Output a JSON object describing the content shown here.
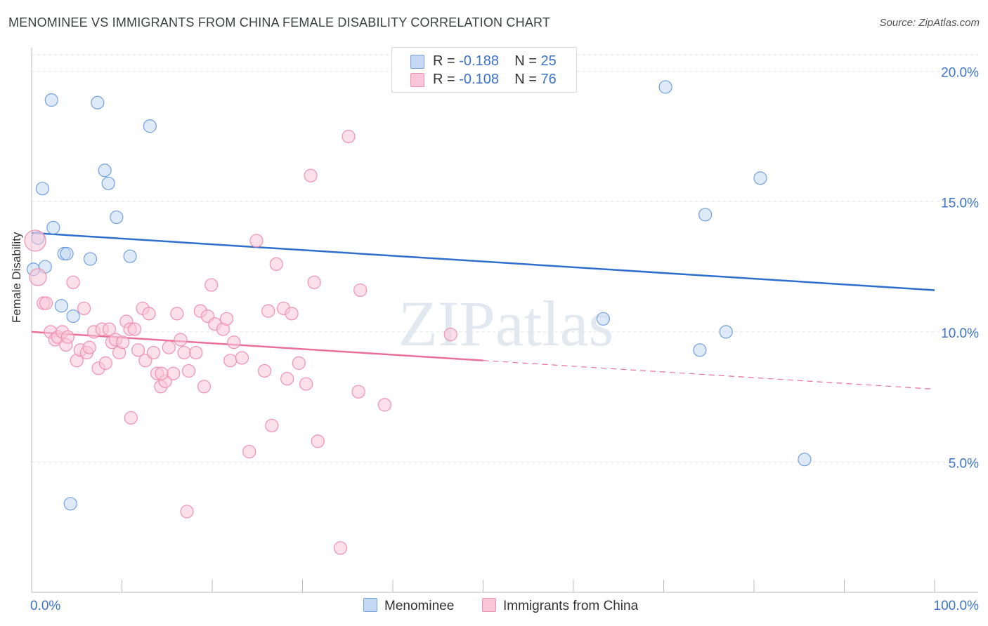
{
  "chart_data": {
    "type": "scatter",
    "title": "MENOMINEE VS IMMIGRANTS FROM CHINA FEMALE DISABILITY CORRELATION CHART",
    "source": "Source: ZipAtlas.com",
    "xlabel": "",
    "ylabel": "Female Disability",
    "xlim": [
      0,
      100
    ],
    "ylim": [
      0,
      20.8
    ],
    "x_tick_labels": [
      "0.0%",
      "100.0%"
    ],
    "y_ticks": [
      5,
      10,
      15,
      20
    ],
    "y_tick_labels": [
      "5.0%",
      "10.0%",
      "15.0%",
      "20.0%"
    ],
    "watermark": "ZIPatlas",
    "legend": [
      {
        "r_label": "R =",
        "r_value": "-0.188",
        "n_label": "N =",
        "n_value": "25"
      },
      {
        "r_label": "R =",
        "r_value": "-0.108",
        "n_label": "N =",
        "n_value": "76"
      }
    ],
    "series": [
      {
        "name": "Menominee",
        "color": "#6fa0e0",
        "fill": "#c5d9f4",
        "line_color": "#2e6fcc",
        "trend": {
          "x0": 0,
          "y0": 13.8,
          "x1": 100,
          "y1": 11.6,
          "solid_until": 100
        },
        "points": [
          [
            2.2,
            18.9
          ],
          [
            7.3,
            18.8
          ],
          [
            13.1,
            17.9
          ],
          [
            1.2,
            15.5
          ],
          [
            8.1,
            16.2
          ],
          [
            8.5,
            15.7
          ],
          [
            9.4,
            14.4
          ],
          [
            2.4,
            14.0
          ],
          [
            0.7,
            13.6
          ],
          [
            3.6,
            13.0
          ],
          [
            3.9,
            13.0
          ],
          [
            6.5,
            12.8
          ],
          [
            10.9,
            12.9
          ],
          [
            0.2,
            12.4
          ],
          [
            1.5,
            12.5
          ],
          [
            3.3,
            11.0
          ],
          [
            4.6,
            10.6
          ],
          [
            70.2,
            19.4
          ],
          [
            80.7,
            15.9
          ],
          [
            74.6,
            14.5
          ],
          [
            63.3,
            10.5
          ],
          [
            76.9,
            10.0
          ],
          [
            74.0,
            9.3
          ],
          [
            85.6,
            5.1
          ],
          [
            4.3,
            3.4
          ]
        ]
      },
      {
        "name": "Immigrants from China",
        "color": "#f090b0",
        "fill": "#f9c6d7",
        "line_color": "#e8709a",
        "trend": {
          "x0": 0,
          "y0": 10.0,
          "x1": 100,
          "y1": 7.8,
          "solid_until": 50
        },
        "points": [
          [
            0.4,
            13.5
          ],
          [
            0.7,
            12.1
          ],
          [
            1.3,
            11.1
          ],
          [
            1.6,
            11.1
          ],
          [
            2.1,
            10.0
          ],
          [
            2.6,
            9.7
          ],
          [
            2.9,
            9.8
          ],
          [
            3.4,
            10.0
          ],
          [
            3.8,
            9.5
          ],
          [
            4.0,
            9.8
          ],
          [
            4.6,
            11.9
          ],
          [
            5.0,
            8.9
          ],
          [
            5.4,
            9.3
          ],
          [
            5.8,
            10.9
          ],
          [
            6.1,
            9.2
          ],
          [
            6.4,
            9.4
          ],
          [
            6.9,
            10.0
          ],
          [
            7.4,
            8.6
          ],
          [
            7.8,
            10.1
          ],
          [
            8.2,
            8.8
          ],
          [
            8.6,
            10.1
          ],
          [
            8.9,
            9.6
          ],
          [
            9.3,
            9.7
          ],
          [
            9.7,
            9.2
          ],
          [
            10.1,
            9.6
          ],
          [
            10.5,
            10.4
          ],
          [
            10.9,
            10.1
          ],
          [
            11.4,
            10.1
          ],
          [
            11.8,
            9.3
          ],
          [
            12.3,
            10.9
          ],
          [
            12.6,
            8.9
          ],
          [
            13.0,
            10.7
          ],
          [
            13.5,
            9.2
          ],
          [
            13.9,
            8.4
          ],
          [
            14.3,
            7.9
          ],
          [
            14.8,
            8.1
          ],
          [
            15.2,
            9.4
          ],
          [
            15.7,
            8.4
          ],
          [
            16.1,
            10.7
          ],
          [
            16.5,
            9.7
          ],
          [
            16.9,
            9.2
          ],
          [
            17.4,
            8.5
          ],
          [
            18.2,
            9.2
          ],
          [
            18.7,
            10.8
          ],
          [
            19.1,
            7.9
          ],
          [
            19.5,
            10.6
          ],
          [
            19.9,
            11.8
          ],
          [
            20.3,
            10.3
          ],
          [
            21.2,
            10.1
          ],
          [
            21.6,
            10.5
          ],
          [
            22.0,
            8.9
          ],
          [
            22.4,
            9.6
          ],
          [
            23.3,
            9.0
          ],
          [
            24.1,
            5.4
          ],
          [
            24.9,
            13.5
          ],
          [
            25.8,
            8.5
          ],
          [
            26.2,
            10.8
          ],
          [
            26.6,
            6.4
          ],
          [
            27.1,
            12.6
          ],
          [
            27.9,
            10.9
          ],
          [
            28.3,
            8.2
          ],
          [
            28.8,
            10.7
          ],
          [
            29.6,
            8.8
          ],
          [
            30.4,
            8.0
          ],
          [
            30.9,
            16.0
          ],
          [
            31.3,
            11.9
          ],
          [
            31.7,
            5.8
          ],
          [
            14.4,
            8.4
          ],
          [
            11.0,
            6.7
          ],
          [
            17.2,
            3.1
          ],
          [
            34.2,
            1.7
          ],
          [
            35.1,
            17.5
          ],
          [
            36.4,
            11.6
          ],
          [
            36.2,
            7.7
          ],
          [
            39.1,
            7.2
          ],
          [
            46.4,
            9.9
          ]
        ]
      }
    ]
  },
  "bottom_legend": {
    "menominee_label": "Menominee",
    "china_label": "Immigrants from China"
  }
}
